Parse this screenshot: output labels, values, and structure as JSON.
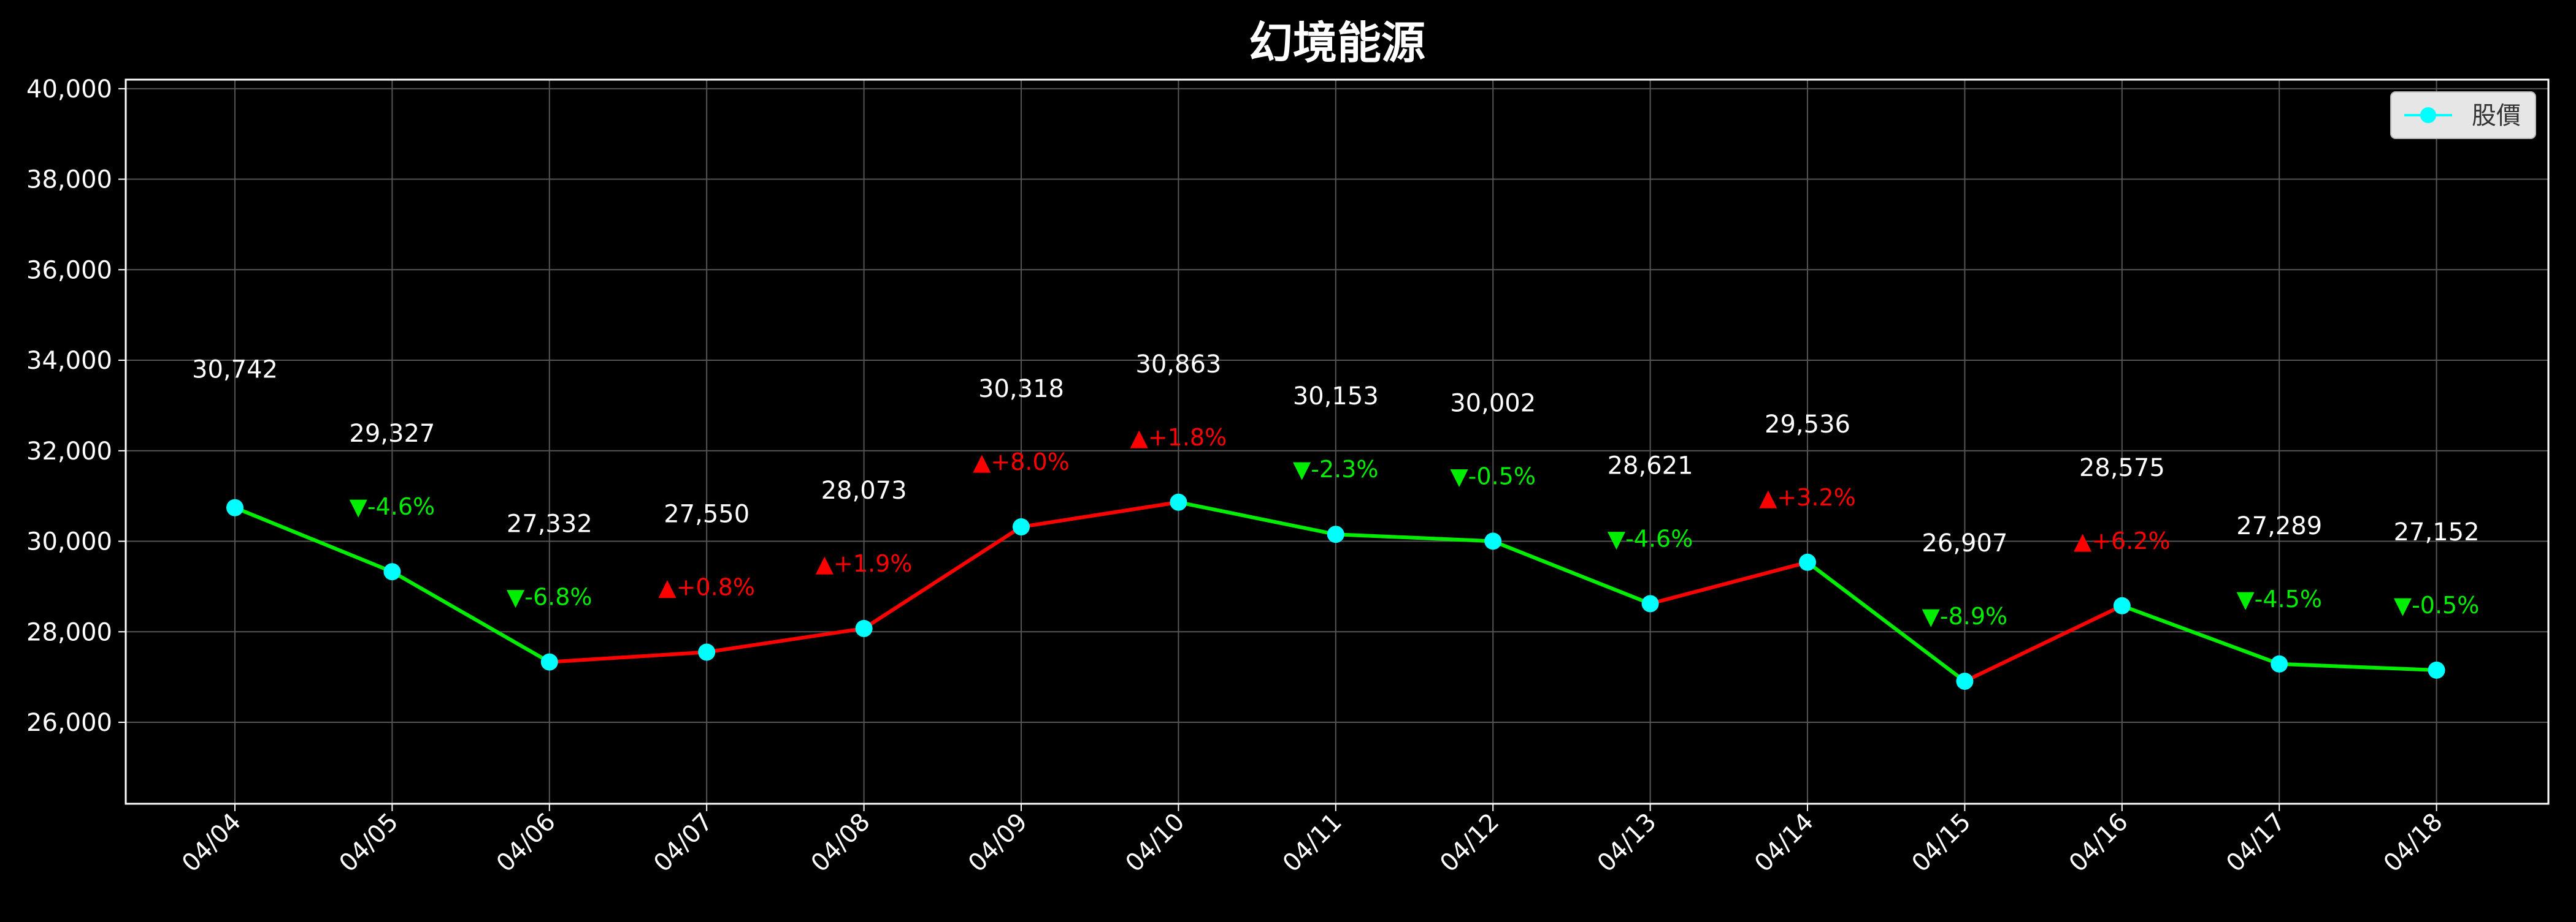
{
  "chart_data": {
    "type": "line",
    "title": "幻境能源",
    "xlabel": "",
    "ylabel": "",
    "categories": [
      "04/04",
      "04/05",
      "04/06",
      "04/07",
      "04/08",
      "04/09",
      "04/10",
      "04/11",
      "04/12",
      "04/13",
      "04/14",
      "04/15",
      "04/16",
      "04/17",
      "04/18"
    ],
    "series": [
      {
        "name": "股價",
        "values": [
          30742,
          29327,
          27332,
          27550,
          28073,
          30318,
          30863,
          30153,
          30002,
          28621,
          29536,
          26907,
          28575,
          27289,
          27152
        ]
      }
    ],
    "value_labels": [
      "30,742",
      "29,327",
      "27,332",
      "27,550",
      "28,073",
      "30,318",
      "30,863",
      "30,153",
      "30,002",
      "28,621",
      "29,536",
      "26,907",
      "28,575",
      "27,289",
      "27,152"
    ],
    "change_labels": [
      "",
      "▼-4.6%",
      "▼-6.8%",
      "▲+0.8%",
      "▲+1.9%",
      "▲+8.0%",
      "▲+1.8%",
      "▼-2.3%",
      "▼-0.5%",
      "▼-4.6%",
      "▲+3.2%",
      "▼-8.9%",
      "▲+6.2%",
      "▼-4.5%",
      "▼-0.5%"
    ],
    "ylim": [
      24200,
      40200
    ],
    "yticks": [
      26000,
      28000,
      30000,
      32000,
      34000,
      36000,
      38000,
      40000
    ],
    "ytick_labels": [
      "26,000",
      "28,000",
      "30,000",
      "32,000",
      "34,000",
      "36,000",
      "38,000",
      "40,000"
    ],
    "grid": true,
    "legend": "top-right",
    "colors": {
      "background": "#000000",
      "up": "#ff0000",
      "down": "#00ee00",
      "marker": "#00ffff",
      "grid": "#555555",
      "axes": "#ffffff"
    }
  }
}
